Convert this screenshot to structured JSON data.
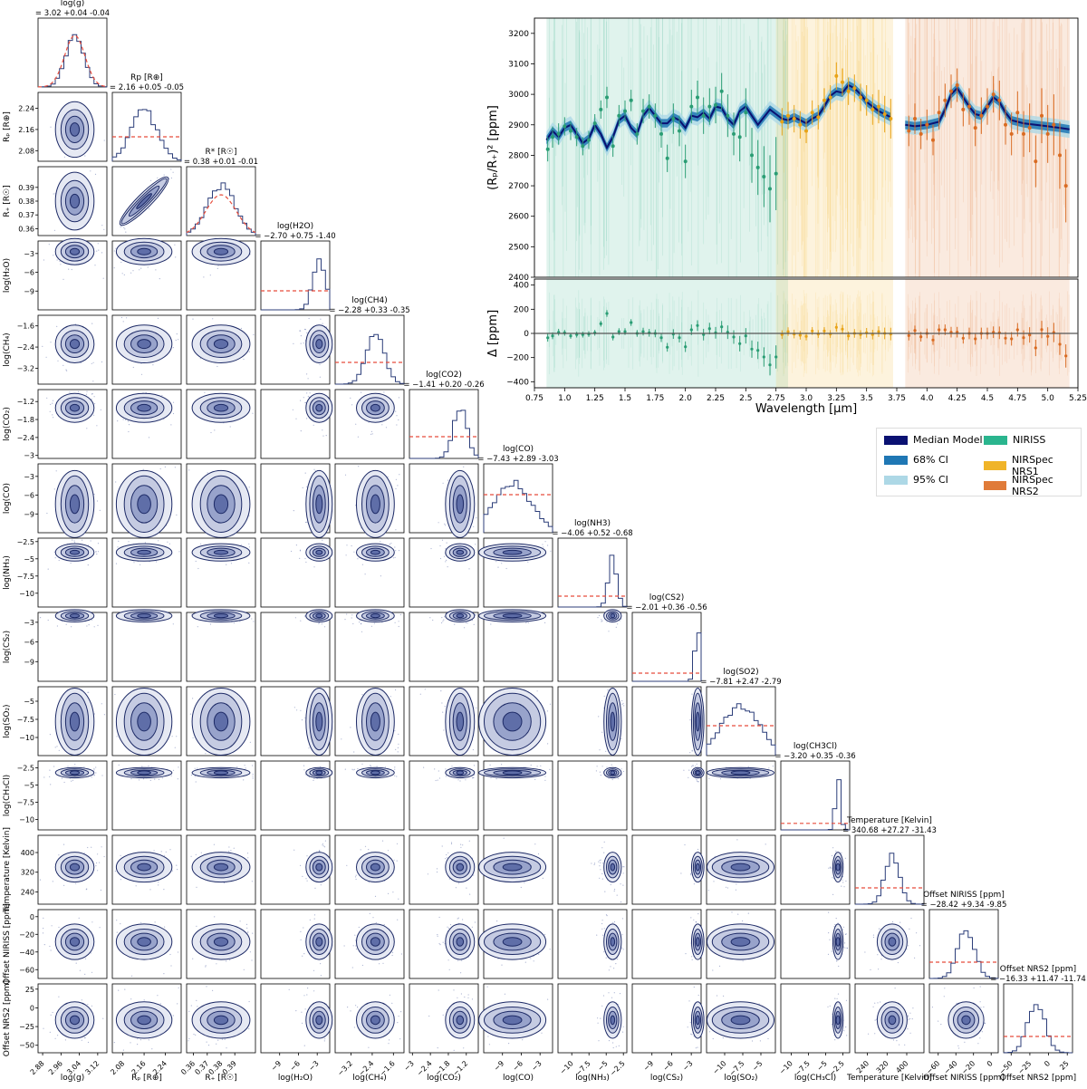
{
  "chart_data": {
    "type": "figure",
    "corner": {
      "title": "Corner plot of retrieval posteriors",
      "params": [
        {
          "label": "log(g)",
          "axis_label": "log(g)",
          "summary": "= 3.02 +0.04 -0.04",
          "range": [
            2.86,
            3.16
          ],
          "ticks": [
            2.88,
            2.96,
            3.04,
            3.12
          ],
          "median": 3.02,
          "sigma": 0.04,
          "prior_level": 0.6
        },
        {
          "label": "Rp [R⊕]",
          "axis_label": "Rₚ [R⊕]",
          "summary": "= 2.16 +0.05 -0.05",
          "range": [
            2.04,
            2.3
          ],
          "ticks": [
            2.08,
            2.16,
            2.24
          ],
          "median": 2.16,
          "sigma": 0.05,
          "prior_level": 0.45
        },
        {
          "label": "R* [R☉]",
          "axis_label": "R₊ [R☉]",
          "summary": "= 0.38 +0.01 -0.01",
          "range": [
            0.355,
            0.405
          ],
          "ticks": [
            0.36,
            0.37,
            0.38,
            0.39
          ],
          "median": 0.38,
          "sigma": 0.01,
          "prior_level": 0.6
        },
        {
          "label": "log(H2O)",
          "axis_label": "log(H₂O)",
          "summary": "= −2.70 +0.75 -1.40",
          "range": [
            -12,
            -1
          ],
          "ticks": [
            -9,
            -6,
            -3
          ],
          "median": -2.7,
          "sigma": 1.0,
          "prior_level": 0.35
        },
        {
          "label": "log(CH4)",
          "axis_label": "log(CH₄)",
          "summary": "= −2.28 +0.33 -0.35",
          "range": [
            -3.8,
            -1.2
          ],
          "ticks": [
            -3.2,
            -2.4,
            -1.6
          ],
          "median": -2.28,
          "sigma": 0.34,
          "prior_level": 0.4
        },
        {
          "label": "log(CO2)",
          "axis_label": "log(CO₂)",
          "summary": "= −1.41 +0.20 -0.26",
          "range": [
            -3.1,
            -0.8
          ],
          "ticks": [
            -3.0,
            -2.4,
            -1.8,
            -1.2
          ],
          "median": -1.41,
          "sigma": 0.23,
          "prior_level": 0.4
        },
        {
          "label": "log(CO)",
          "axis_label": "log(CO)",
          "summary": "= −7.43 +2.89 -3.03",
          "range": [
            -12,
            -1
          ],
          "ticks": [
            -9,
            -6,
            -3
          ],
          "median": -7.43,
          "sigma": 3.0,
          "prior_level": 0.7
        },
        {
          "label": "log(NH3)",
          "axis_label": "log(NH₃)",
          "summary": "= −4.06 +0.52 -0.68",
          "range": [
            -12,
            -2
          ],
          "ticks": [
            -10.0,
            -7.5,
            -5.0,
            -2.5
          ],
          "median": -4.06,
          "sigma": 0.6,
          "prior_level": 0.2
        },
        {
          "label": "log(CS2)",
          "axis_label": "log(CS₂)",
          "summary": "= −2.01 +0.36 -0.56",
          "range": [
            -12,
            -1.5
          ],
          "ticks": [
            -9,
            -6,
            -3
          ],
          "median": -2.01,
          "sigma": 0.45,
          "prior_level": 0.15
        },
        {
          "label": "log(SO2)",
          "axis_label": "log(SO₂)",
          "summary": "= −7.81 +2.47 -2.79",
          "range": [
            -12.5,
            -3
          ],
          "ticks": [
            -10.0,
            -7.5,
            -5.0
          ],
          "median": -7.81,
          "sigma": 2.6,
          "prior_level": 0.55
        },
        {
          "label": "log(CH3Cl)",
          "axis_label": "log(CH₃Cl)",
          "summary": "= −3.20 +0.35 -0.36",
          "range": [
            -11.5,
            -1.5
          ],
          "ticks": [
            -10.0,
            -7.5,
            -5.0,
            -2.5
          ],
          "median": -3.2,
          "sigma": 0.36,
          "prior_level": 0.12
        },
        {
          "label": "Temperature [Kelvin]",
          "axis_label": "Temperature [Kelvin]",
          "summary": "= 340.68 +27.27 -31.43",
          "range": [
            190,
            470
          ],
          "ticks": [
            240,
            320,
            400
          ],
          "median": 340.68,
          "sigma": 29,
          "prior_level": 0.3
        },
        {
          "label": "Offset NIRISS [ppm]",
          "axis_label": "Offset NIRISS [ppm]",
          "summary": "= −28.42 +9.34 -9.85",
          "range": [
            -70,
            8
          ],
          "ticks": [
            -60,
            -40,
            -20,
            0
          ],
          "median": -28.42,
          "sigma": 9.6,
          "prior_level": 0.3
        },
        {
          "label": "Offset NRS2 [ppm]",
          "axis_label": "Offset NRS2 [ppm]",
          "summary": "= −16.33 +11.47 -11.74",
          "range": [
            -60,
            32
          ],
          "ticks": [
            -50,
            -25,
            0,
            25
          ],
          "median": -16.33,
          "sigma": 11.6,
          "prior_level": 0.3
        }
      ],
      "diag_ticks_y": {
        "1": [
          2.08,
          2.16,
          2.24
        ],
        "2": [
          0.36,
          0.37,
          0.38,
          0.39
        ],
        "3": [
          -9,
          -6,
          -3
        ],
        "4": [
          -3.2,
          -2.4,
          -1.6
        ],
        "5": [
          -3.0,
          -2.4,
          -1.8,
          -1.2
        ],
        "6": [
          -9,
          -6,
          -3
        ],
        "7": [
          -10.0,
          -7.5,
          -5.0,
          -2.5
        ],
        "8": [
          -9,
          -6,
          -3
        ],
        "9": [
          -10.0,
          -7.5,
          -5.0
        ],
        "10": [
          -10.0,
          -7.5,
          -5.0,
          -2.5
        ],
        "11": [
          240,
          320,
          400
        ],
        "12": [
          -60,
          -40,
          -20,
          0
        ],
        "13": [
          -50,
          -25,
          0,
          25
        ]
      },
      "row_labels": [
        "",
        "Rₚ [R⊕]",
        "R₊ [R☉]",
        "log(H₂O)",
        "log(CH₄)",
        "log(CO₂)",
        "log(CO)",
        "log(NH₃)",
        "log(CS₂)",
        "log(SO₂)",
        "log(CH₃Cl)",
        "Temperature [Kelvin]",
        "Offset NIRISS [ppm]",
        "Offset NRS2 [ppm]"
      ]
    },
    "spectrum": {
      "type": "line",
      "xlabel": "Wavelength [μm]",
      "ylabel_top": "(Rₚ/R₊)² [ppm]",
      "ylabel_bottom": "Δ [ppm]",
      "xlim": [
        0.75,
        5.25
      ],
      "ylim_top": [
        2400,
        3250
      ],
      "ylim_bottom": [
        -450,
        450
      ],
      "xticks": [
        0.75,
        1.0,
        1.25,
        1.5,
        1.75,
        2.0,
        2.25,
        2.5,
        2.75,
        3.0,
        3.25,
        3.5,
        3.75,
        4.0,
        4.25,
        4.5,
        4.75,
        5.0,
        5.25
      ],
      "yticks_top": [
        2400,
        2500,
        2600,
        2700,
        2800,
        2900,
        3000,
        3100,
        3200
      ],
      "yticks_bottom": [
        -400,
        -200,
        0,
        200,
        400
      ],
      "bands": [
        {
          "name": "NIRISS",
          "range": [
            0.85,
            2.85
          ],
          "color": "#3cb38f"
        },
        {
          "name": "NIRSpec NRS1",
          "range": [
            2.75,
            3.72
          ],
          "color": "#f0b429"
        },
        {
          "name": "NIRSpec NRS2",
          "range": [
            3.82,
            5.18
          ],
          "color": "#e07b39"
        }
      ],
      "model": {
        "x": [
          0.85,
          0.9,
          0.95,
          1.0,
          1.05,
          1.1,
          1.15,
          1.2,
          1.25,
          1.3,
          1.35,
          1.4,
          1.45,
          1.5,
          1.55,
          1.6,
          1.65,
          1.7,
          1.75,
          1.8,
          1.85,
          1.9,
          1.95,
          2.0,
          2.05,
          2.1,
          2.15,
          2.2,
          2.25,
          2.3,
          2.35,
          2.4,
          2.45,
          2.5,
          2.55,
          2.6,
          2.65,
          2.7,
          2.75,
          2.8,
          2.85,
          2.9,
          2.95,
          3.0,
          3.05,
          3.1,
          3.15,
          3.2,
          3.25,
          3.3,
          3.35,
          3.4,
          3.45,
          3.5,
          3.55,
          3.6,
          3.65,
          3.7
        ],
        "y": [
          2850,
          2880,
          2860,
          2890,
          2900,
          2870,
          2840,
          2855,
          2900,
          2870,
          2825,
          2860,
          2915,
          2930,
          2890,
          2870,
          2930,
          2955,
          2930,
          2905,
          2905,
          2925,
          2915,
          2890,
          2930,
          2925,
          2940,
          2920,
          2960,
          2955,
          2920,
          2900,
          2945,
          2960,
          2930,
          2900,
          2925,
          2950,
          2935,
          2920,
          2915,
          2925,
          2915,
          2905,
          2920,
          2930,
          2960,
          2995,
          3010,
          3005,
          3030,
          3020,
          3000,
          2975,
          2960,
          2945,
          2935,
          2925
        ]
      },
      "model2": {
        "x": [
          3.82,
          3.9,
          4.0,
          4.1,
          4.15,
          4.2,
          4.25,
          4.3,
          4.35,
          4.4,
          4.45,
          4.5,
          4.55,
          4.6,
          4.65,
          4.7,
          4.8,
          4.9,
          5.0,
          5.1,
          5.18
        ],
        "y": [
          2900,
          2895,
          2900,
          2910,
          2950,
          3000,
          3020,
          2990,
          2960,
          2935,
          2930,
          2960,
          2990,
          2975,
          2940,
          2915,
          2905,
          2900,
          2895,
          2890,
          2885
        ]
      },
      "data": [
        {
          "name": "NIRISS",
          "color": "#2a9d74",
          "x": [
            0.86,
            0.9,
            0.95,
            1.0,
            1.05,
            1.1,
            1.15,
            1.2,
            1.25,
            1.3,
            1.35,
            1.4,
            1.45,
            1.5,
            1.55,
            1.6,
            1.65,
            1.7,
            1.75,
            1.8,
            1.85,
            1.9,
            1.95,
            2.0,
            2.05,
            2.1,
            2.15,
            2.2,
            2.25,
            2.3,
            2.35,
            2.4,
            2.45,
            2.5,
            2.55,
            2.6,
            2.65,
            2.7,
            2.75
          ],
          "y": [
            2820,
            2860,
            2870,
            2895,
            2880,
            2860,
            2830,
            2850,
            2905,
            2950,
            2990,
            2830,
            2930,
            2945,
            2980,
            2870,
            2945,
            2960,
            2930,
            2870,
            2790,
            2920,
            2880,
            2780,
            2960,
            2990,
            2930,
            2960,
            2965,
            3010,
            2930,
            2870,
            2860,
            2940,
            2800,
            2760,
            2730,
            2690,
            2740
          ],
          "err": [
            40,
            35,
            35,
            30,
            30,
            30,
            30,
            30,
            30,
            30,
            35,
            35,
            35,
            35,
            35,
            35,
            40,
            40,
            40,
            45,
            45,
            50,
            50,
            55,
            55,
            55,
            60,
            60,
            60,
            60,
            70,
            70,
            80,
            80,
            90,
            90,
            100,
            110,
            120
          ]
        },
        {
          "name": "NIRSpec NRS1",
          "color": "#e8a317",
          "x": [
            2.8,
            2.85,
            2.9,
            2.95,
            3.0,
            3.05,
            3.1,
            3.15,
            3.2,
            3.25,
            3.3,
            3.35,
            3.4,
            3.45,
            3.5,
            3.55,
            3.6,
            3.65,
            3.7
          ],
          "y": [
            2910,
            2930,
            2920,
            2900,
            2880,
            2940,
            2925,
            2980,
            2990,
            3060,
            3040,
            3010,
            3020,
            2990,
            2980,
            2950,
            2960,
            2935,
            2920
          ],
          "err": [
            45,
            45,
            45,
            45,
            40,
            40,
            40,
            40,
            40,
            45,
            45,
            45,
            45,
            45,
            50,
            50,
            55,
            60,
            65
          ]
        },
        {
          "name": "NIRSpec NRS2",
          "color": "#d96b22",
          "x": [
            3.85,
            3.9,
            3.95,
            4.0,
            4.05,
            4.1,
            4.15,
            4.2,
            4.25,
            4.3,
            4.35,
            4.4,
            4.45,
            4.5,
            4.55,
            4.6,
            4.65,
            4.7,
            4.75,
            4.8,
            4.85,
            4.9,
            4.95,
            5.0,
            5.05,
            5.1,
            5.15
          ],
          "y": [
            2880,
            2920,
            2870,
            2900,
            2850,
            2940,
            2980,
            3010,
            3030,
            2950,
            2960,
            2890,
            2930,
            2960,
            3000,
            2980,
            2900,
            2870,
            2940,
            2870,
            2890,
            2780,
            2930,
            2870,
            2900,
            2800,
            2700
          ],
          "err": [
            50,
            50,
            50,
            50,
            50,
            55,
            55,
            55,
            55,
            55,
            60,
            60,
            60,
            60,
            60,
            65,
            65,
            70,
            70,
            75,
            80,
            85,
            90,
            95,
            100,
            110,
            120
          ]
        }
      ]
    }
  },
  "legend": {
    "items": [
      {
        "label": "Median Model",
        "color": "#0a1172"
      },
      {
        "label": "68% CI",
        "color": "#1f77b4"
      },
      {
        "label": "95% CI",
        "color": "#add8e6"
      },
      {
        "label": "NIRISS",
        "color": "#2ab58e"
      },
      {
        "label": "NIRSpec NRS1",
        "color": "#f0b429"
      },
      {
        "label": "NIRSpec NRS2",
        "color": "#e07b39"
      }
    ]
  }
}
